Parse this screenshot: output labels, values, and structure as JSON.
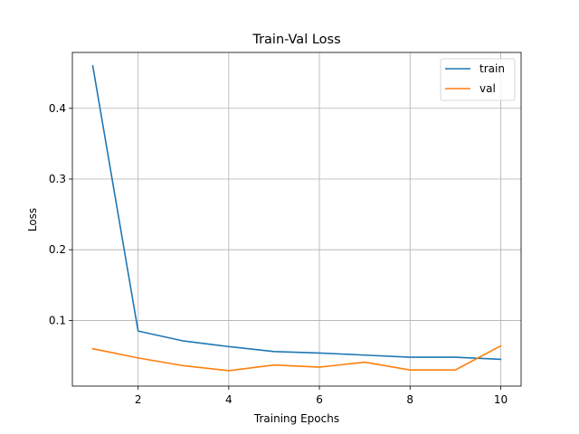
{
  "chart_data": {
    "type": "line",
    "title": "Train-Val Loss",
    "xlabel": "Training Epochs",
    "ylabel": "Loss",
    "x": [
      1,
      2,
      3,
      4,
      5,
      6,
      7,
      8,
      9,
      10
    ],
    "series": [
      {
        "name": "train",
        "color": "#1f77b4",
        "values": [
          0.46,
          0.085,
          0.071,
          0.063,
          0.056,
          0.054,
          0.051,
          0.048,
          0.048,
          0.045
        ]
      },
      {
        "name": "val",
        "color": "#ff7f0e",
        "values": [
          0.06,
          0.047,
          0.036,
          0.029,
          0.037,
          0.034,
          0.041,
          0.03,
          0.03,
          0.064
        ]
      }
    ],
    "xlim": [
      0.55,
      10.45
    ],
    "ylim": [
      0.0072,
      0.479
    ],
    "xticks": [
      2,
      4,
      6,
      8,
      10
    ],
    "xtick_labels": [
      "2",
      "4",
      "6",
      "8",
      "10"
    ],
    "yticks": [
      0.1,
      0.2,
      0.3,
      0.4
    ],
    "ytick_labels": [
      "0.1",
      "0.2",
      "0.3",
      "0.4"
    ],
    "grid": true,
    "legend_position": "upper right"
  }
}
